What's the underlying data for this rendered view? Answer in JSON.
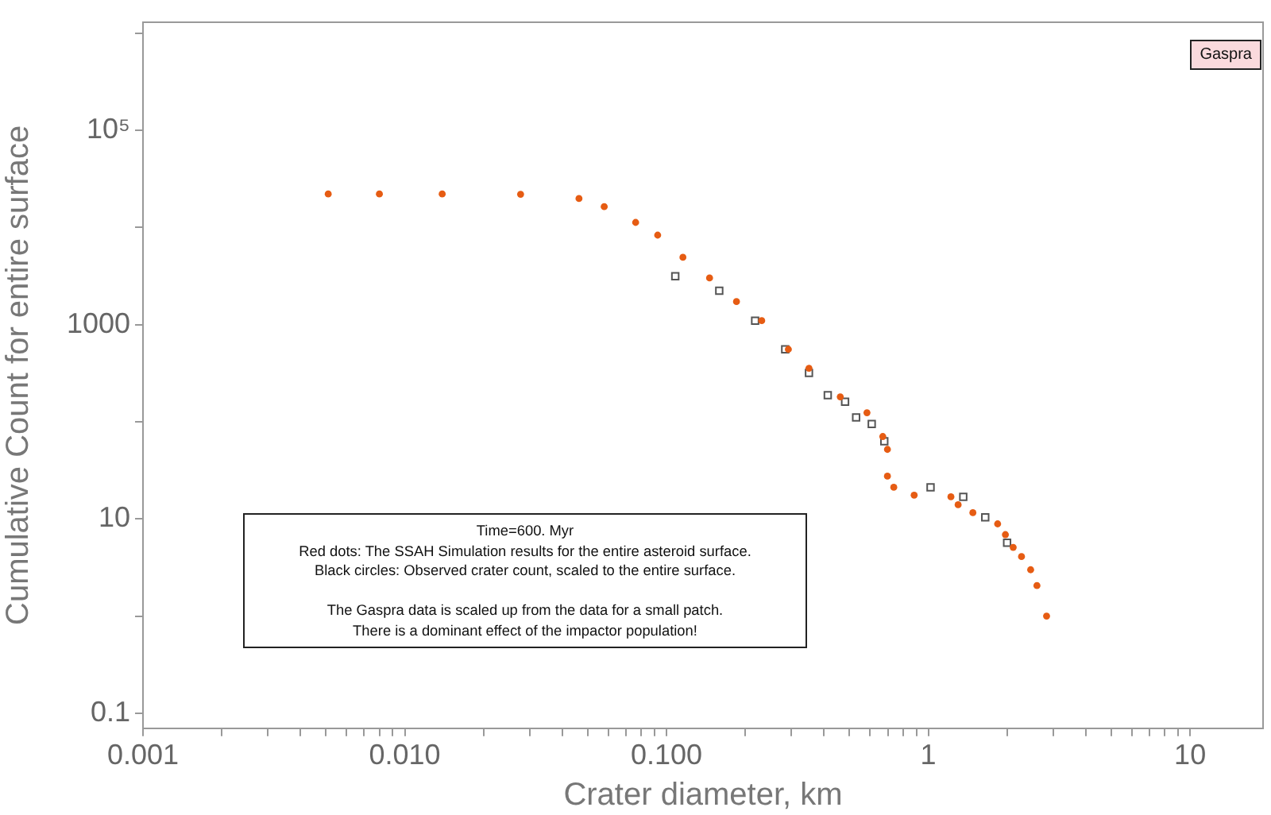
{
  "chart_data": {
    "type": "scatter",
    "title": "Gaspra",
    "xlabel": "Crater diameter, km",
    "ylabel": "Cumulative Count for entire surface",
    "annotations": [
      "Time=600. Myr\nRed dots: The SSAH Simulation results for the entire asteroid surface.\nBlack circles: Observed crater count, scaled to the entire surface.\n\nThe Gaspra data is scaled up from the data for a small patch.\nThere is a dominant effect of the impactor population!"
    ],
    "log": "xy",
    "grid": false,
    "legend": false,
    "xlim": [
      0.001,
      19
    ],
    "ylim": [
      0.07,
      1300000
    ],
    "xticks": [
      {
        "value": 0.001,
        "label": "0.001"
      },
      {
        "value": 0.002,
        "label": null
      },
      {
        "value": 0.003,
        "label": null
      },
      {
        "value": 0.004,
        "label": null
      },
      {
        "value": 0.005,
        "label": null
      },
      {
        "value": 0.006,
        "label": null
      },
      {
        "value": 0.007,
        "label": null
      },
      {
        "value": 0.008,
        "label": null
      },
      {
        "value": 0.009,
        "label": null
      },
      {
        "value": 0.01,
        "label": "0.010"
      },
      {
        "value": 0.02,
        "label": null
      },
      {
        "value": 0.03,
        "label": null
      },
      {
        "value": 0.04,
        "label": null
      },
      {
        "value": 0.05,
        "label": null
      },
      {
        "value": 0.06,
        "label": null
      },
      {
        "value": 0.07,
        "label": null
      },
      {
        "value": 0.08,
        "label": null
      },
      {
        "value": 0.09,
        "label": null
      },
      {
        "value": 0.1,
        "label": "0.100"
      },
      {
        "value": 0.2,
        "label": null
      },
      {
        "value": 0.3,
        "label": null
      },
      {
        "value": 0.4,
        "label": null
      },
      {
        "value": 0.5,
        "label": null
      },
      {
        "value": 0.6,
        "label": null
      },
      {
        "value": 0.7,
        "label": null
      },
      {
        "value": 0.8,
        "label": null
      },
      {
        "value": 0.9,
        "label": null
      },
      {
        "value": 1,
        "label": "1"
      },
      {
        "value": 2,
        "label": null
      },
      {
        "value": 3,
        "label": null
      },
      {
        "value": 4,
        "label": null
      },
      {
        "value": 5,
        "label": null
      },
      {
        "value": 6,
        "label": null
      },
      {
        "value": 7,
        "label": null
      },
      {
        "value": 8,
        "label": null
      },
      {
        "value": 9,
        "label": null
      },
      {
        "value": 10,
        "label": "10"
      }
    ],
    "yticks": [
      {
        "value": 0.1,
        "label": "0.1"
      },
      {
        "value": 1,
        "label": null
      },
      {
        "value": 10,
        "label": "10"
      },
      {
        "value": 100,
        "label": null
      },
      {
        "value": 1000,
        "label": "1000"
      },
      {
        "value": 10000,
        "label": null
      },
      {
        "value": 100000,
        "label": "10⁵"
      },
      {
        "value": 1000000,
        "label": null
      }
    ],
    "series": [
      {
        "color": "#e65c13",
        "marker": "circle",
        "x": [
          0.0051,
          0.008,
          0.0139,
          0.0277,
          0.0463,
          0.0578,
          0.0762,
          0.0925,
          0.1155,
          0.146,
          0.185,
          0.231,
          0.292,
          0.35,
          0.461,
          0.583,
          0.67,
          0.698,
          0.698,
          0.738,
          0.883,
          1.22,
          1.3,
          1.48,
          1.84,
          1.97,
          2.11,
          2.27,
          2.46,
          2.6,
          2.83
        ],
        "values": [
          22200,
          22200,
          22200,
          22000,
          19900,
          16400,
          11300,
          8360,
          4940,
          3030,
          1730,
          1100,
          558,
          356,
          181,
          124,
          70.6,
          52,
          27.6,
          21.2,
          17.6,
          16.9,
          14,
          11.6,
          8.9,
          6.9,
          5.1,
          4.1,
          3,
          2.06,
          1
        ]
      },
      {
        "color": "#555555",
        "marker": "square",
        "x": [
          0.108,
          0.159,
          0.218,
          0.284,
          0.35,
          0.413,
          0.481,
          0.53,
          0.608,
          0.679,
          1.02,
          1.36,
          1.65,
          2.0
        ],
        "values": [
          3150,
          2240,
          1100,
          558,
          318,
          188,
          161,
          111,
          95,
          63,
          21.2,
          16.9,
          10.4,
          5.7
        ]
      }
    ]
  }
}
